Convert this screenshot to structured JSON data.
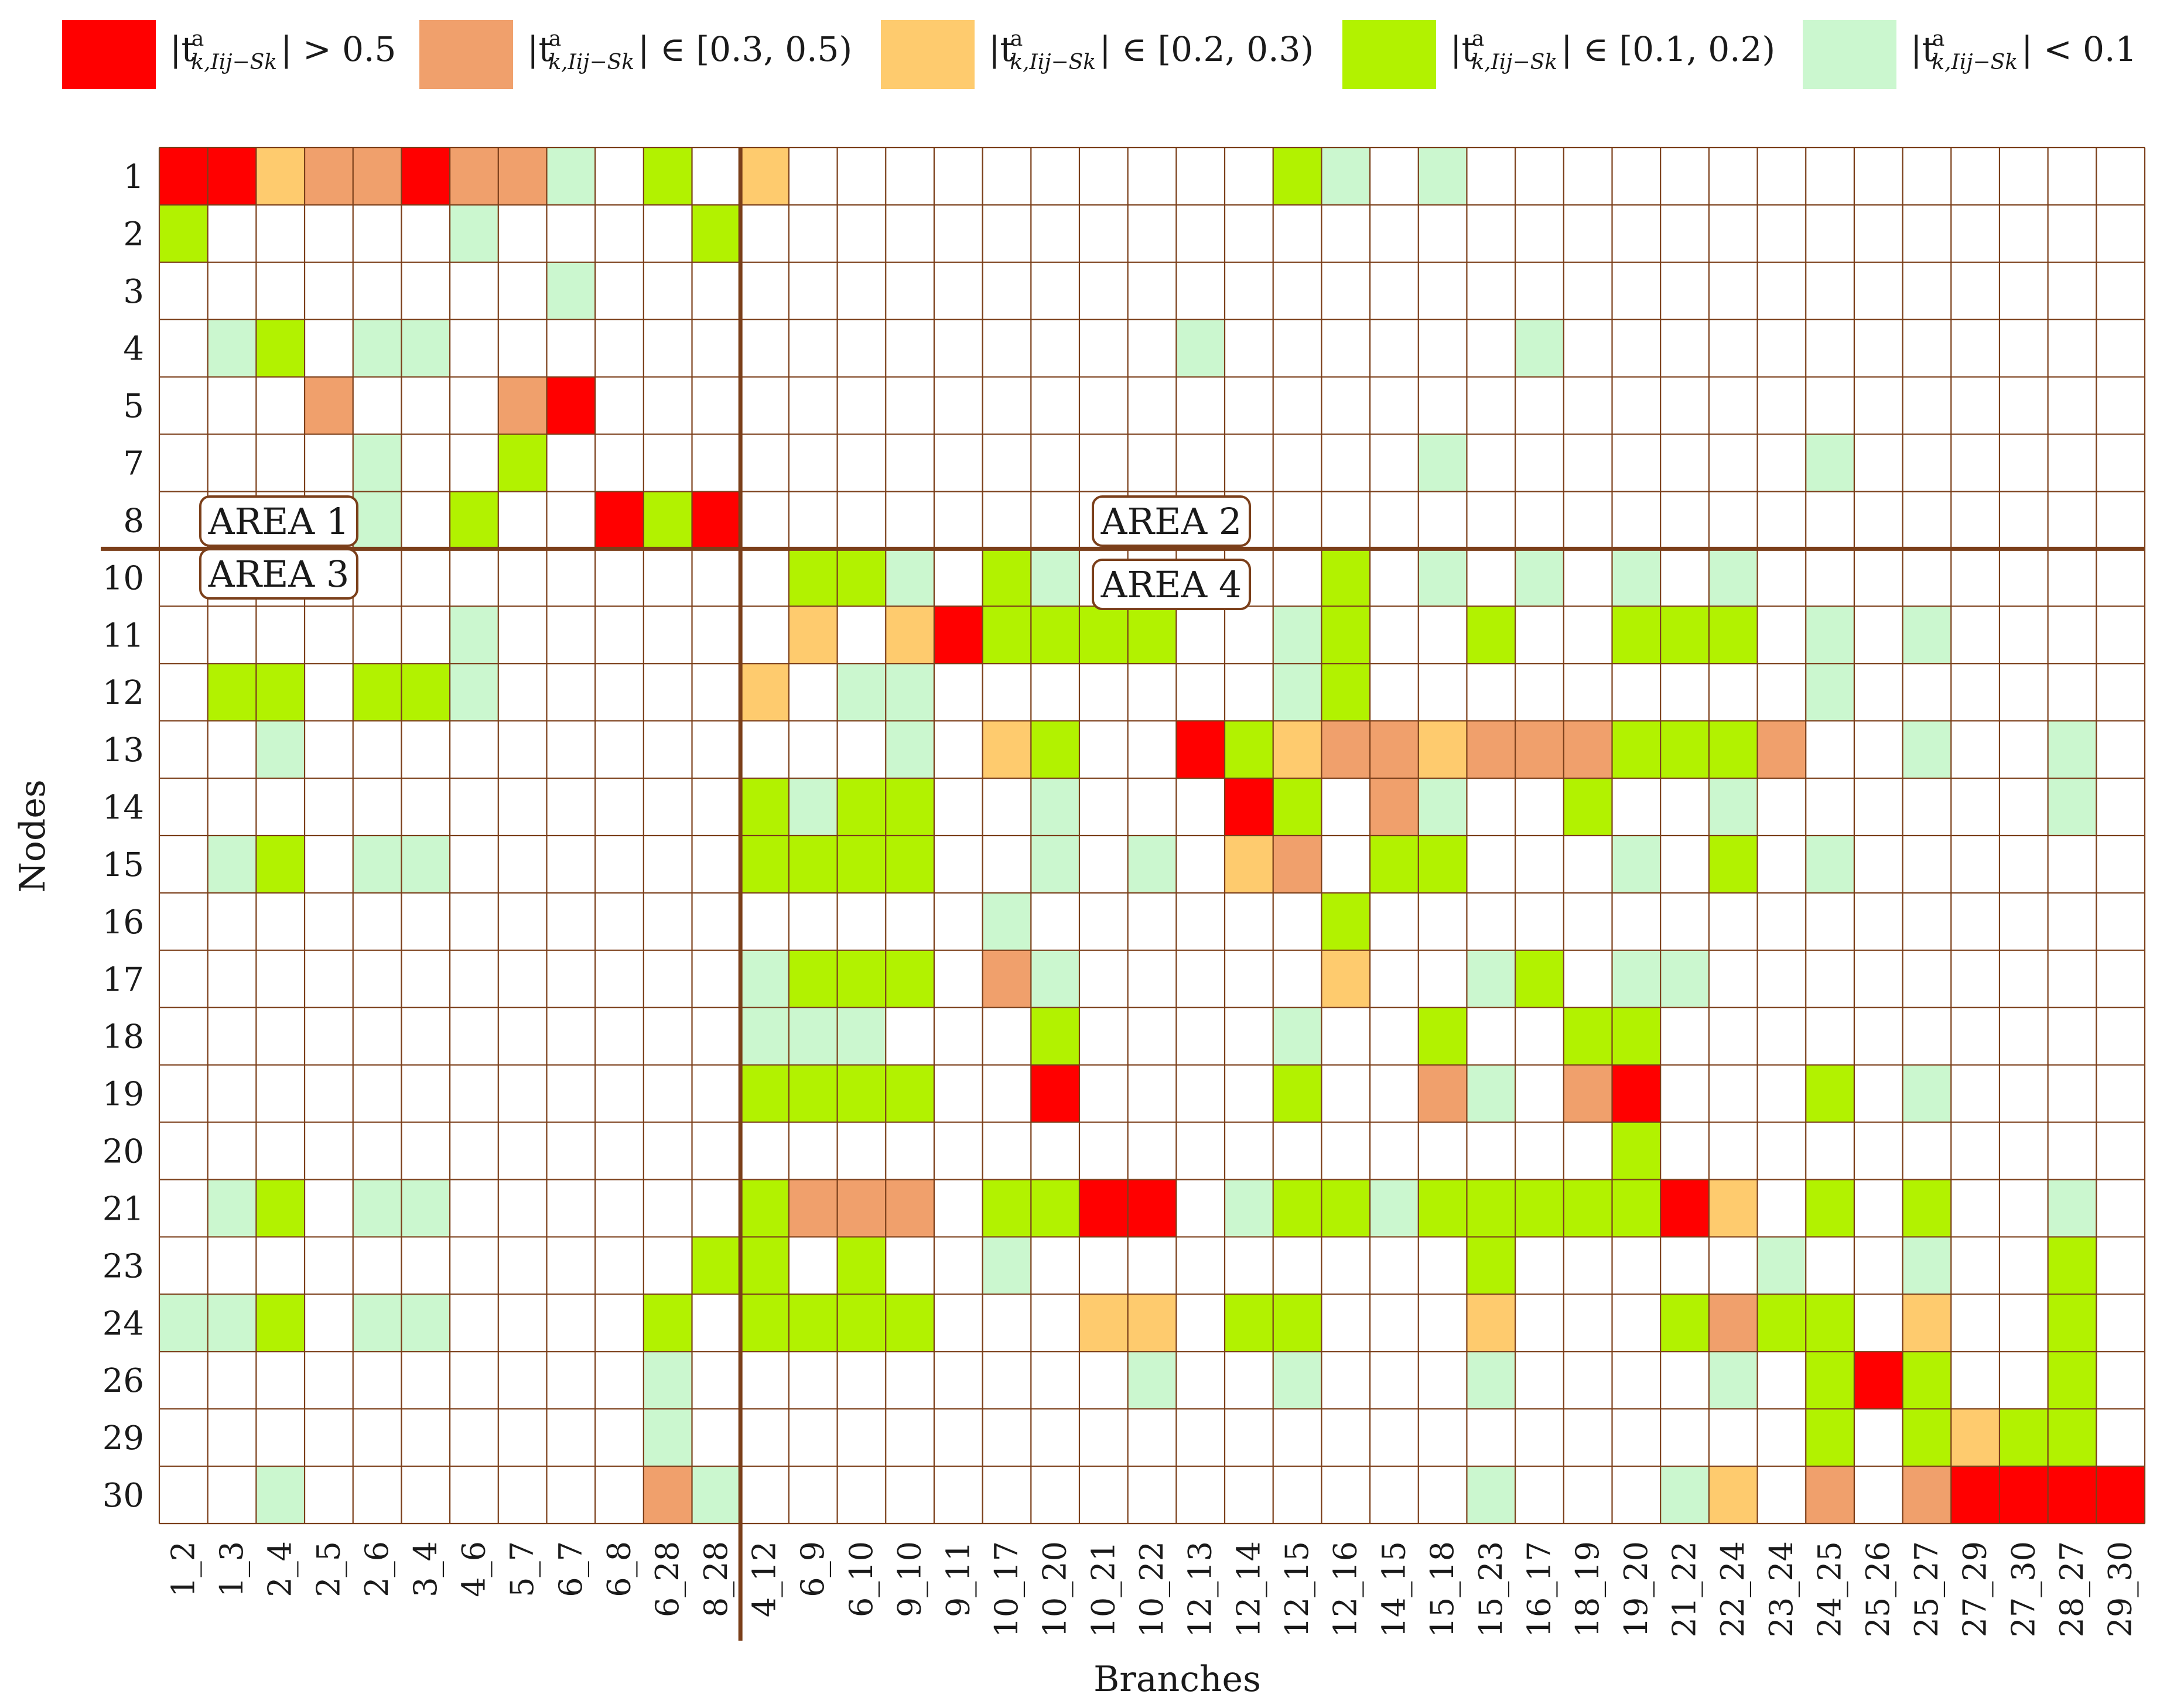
{
  "legend": [
    {
      "level": 4,
      "color": "#ff0000",
      "prefix": "|t",
      "sup": "a",
      "sub": "k,Iij−Sk",
      "suffix": "| > 0.5"
    },
    {
      "level": 3,
      "color": "#f0a06c",
      "prefix": "|t",
      "sup": "a",
      "sub": "k,Iij−Sk",
      "suffix": "| ∈ [0.3, 0.5)"
    },
    {
      "level": 2,
      "color": "#fecb6e",
      "prefix": "|t",
      "sup": "a",
      "sub": "k,Iij−Sk",
      "suffix": "| ∈ [0.2, 0.3)"
    },
    {
      "level": 1,
      "color": "#b2f200",
      "prefix": "|t",
      "sup": "a",
      "sub": "k,Iij−Sk",
      "suffix": "| ∈ [0.1, 0.2)"
    },
    {
      "level": 0,
      "color": "#cbf7cf",
      "prefix": "|t",
      "sup": "a",
      "sub": "k,Iij−Sk",
      "suffix": "| < 0.1"
    }
  ],
  "colors": {
    "grid": "#7b3f1a",
    "divider": "#7b3f1a",
    "empty": "#ffffff"
  },
  "area_labels": [
    "AREA 1",
    "AREA 2",
    "AREA 3",
    "AREA 4"
  ],
  "chart_data": {
    "type": "heatmap",
    "xlabel": "Branches",
    "ylabel": "Nodes",
    "rows": [
      "1",
      "2",
      "3",
      "4",
      "5",
      "7",
      "8",
      "10",
      "11",
      "12",
      "13",
      "14",
      "15",
      "16",
      "17",
      "18",
      "19",
      "20",
      "21",
      "23",
      "24",
      "26",
      "29",
      "30"
    ],
    "cols": [
      "1_2",
      "1_3",
      "2_4",
      "2_5",
      "2_6",
      "3_4",
      "4_6",
      "5_7",
      "6_7",
      "6_8",
      "6_28",
      "8_28",
      "4_12",
      "6_9",
      "6_10",
      "9_10",
      "9_11",
      "10_17",
      "10_20",
      "10_21",
      "10_22",
      "12_13",
      "12_14",
      "12_15",
      "12_16",
      "14_15",
      "15_18",
      "15_23",
      "16_17",
      "18_19",
      "19_20",
      "21_22",
      "22_24",
      "23_24",
      "24_25",
      "25_26",
      "25_27",
      "27_29",
      "27_30",
      "28_27",
      "29_30"
    ],
    "level_meaning": {
      "-1": "empty",
      "0": "< 0.1",
      "1": "[0.1, 0.2)",
      "2": "[0.2, 0.3)",
      "3": "[0.3, 0.5)",
      "4": "> 0.5"
    },
    "area_split": {
      "after_row": "8",
      "after_col": "8_28"
    },
    "cells": [
      [
        4,
        4,
        2,
        3,
        3,
        4,
        3,
        3,
        0,
        -1,
        1,
        -1,
        2,
        -1,
        -1,
        -1,
        -1,
        -1,
        -1,
        -1,
        -1,
        -1,
        -1,
        1,
        0,
        -1,
        0,
        -1,
        -1,
        -1,
        -1,
        -1,
        -1,
        -1,
        -1,
        -1,
        -1,
        -1,
        -1,
        -1,
        -1
      ],
      [
        1,
        -1,
        -1,
        -1,
        -1,
        -1,
        0,
        -1,
        -1,
        -1,
        -1,
        1,
        -1,
        -1,
        -1,
        -1,
        -1,
        -1,
        -1,
        -1,
        -1,
        -1,
        -1,
        -1,
        -1,
        -1,
        -1,
        -1,
        -1,
        -1,
        -1,
        -1,
        -1,
        -1,
        -1,
        -1,
        -1,
        -1,
        -1,
        -1,
        -1
      ],
      [
        -1,
        -1,
        -1,
        -1,
        -1,
        -1,
        -1,
        -1,
        0,
        -1,
        -1,
        -1,
        -1,
        -1,
        -1,
        -1,
        -1,
        -1,
        -1,
        -1,
        -1,
        -1,
        -1,
        -1,
        -1,
        -1,
        -1,
        -1,
        -1,
        -1,
        -1,
        -1,
        -1,
        -1,
        -1,
        -1,
        -1,
        -1,
        -1,
        -1,
        -1
      ],
      [
        -1,
        0,
        1,
        -1,
        0,
        0,
        -1,
        -1,
        -1,
        -1,
        -1,
        -1,
        -1,
        -1,
        -1,
        -1,
        -1,
        -1,
        -1,
        -1,
        -1,
        0,
        -1,
        -1,
        -1,
        -1,
        -1,
        -1,
        0,
        -1,
        -1,
        -1,
        -1,
        -1,
        -1,
        -1,
        -1,
        -1,
        -1,
        -1,
        -1
      ],
      [
        -1,
        -1,
        -1,
        3,
        -1,
        -1,
        -1,
        3,
        4,
        -1,
        -1,
        -1,
        -1,
        -1,
        -1,
        -1,
        -1,
        -1,
        -1,
        -1,
        -1,
        -1,
        -1,
        -1,
        -1,
        -1,
        -1,
        -1,
        -1,
        -1,
        -1,
        -1,
        -1,
        -1,
        -1,
        -1,
        -1,
        -1,
        -1,
        -1,
        -1
      ],
      [
        -1,
        -1,
        -1,
        -1,
        0,
        -1,
        -1,
        1,
        -1,
        -1,
        -1,
        -1,
        -1,
        -1,
        -1,
        -1,
        -1,
        -1,
        -1,
        -1,
        -1,
        -1,
        -1,
        -1,
        -1,
        -1,
        0,
        -1,
        -1,
        -1,
        -1,
        -1,
        -1,
        -1,
        0,
        -1,
        -1,
        -1,
        -1,
        -1,
        -1
      ],
      [
        -1,
        -1,
        -1,
        -1,
        0,
        -1,
        1,
        -1,
        -1,
        4,
        1,
        4,
        -1,
        -1,
        -1,
        -1,
        -1,
        -1,
        -1,
        -1,
        -1,
        -1,
        -1,
        -1,
        -1,
        -1,
        -1,
        -1,
        -1,
        -1,
        -1,
        -1,
        -1,
        -1,
        -1,
        -1,
        -1,
        -1,
        -1,
        -1,
        -1
      ],
      [
        -1,
        -1,
        -1,
        -1,
        -1,
        -1,
        -1,
        -1,
        -1,
        -1,
        -1,
        -1,
        -1,
        1,
        1,
        0,
        -1,
        1,
        0,
        -1,
        -1,
        -1,
        -1,
        -1,
        1,
        -1,
        0,
        -1,
        0,
        -1,
        0,
        -1,
        0,
        -1,
        -1,
        -1,
        -1,
        -1,
        -1,
        -1,
        -1
      ],
      [
        -1,
        -1,
        -1,
        -1,
        -1,
        -1,
        0,
        -1,
        -1,
        -1,
        -1,
        -1,
        -1,
        2,
        -1,
        2,
        4,
        1,
        1,
        1,
        1,
        -1,
        -1,
        0,
        1,
        -1,
        -1,
        1,
        -1,
        -1,
        1,
        1,
        1,
        -1,
        0,
        -1,
        0,
        -1,
        -1,
        -1,
        -1
      ],
      [
        -1,
        1,
        1,
        -1,
        1,
        1,
        0,
        -1,
        -1,
        -1,
        -1,
        -1,
        2,
        -1,
        0,
        0,
        -1,
        -1,
        -1,
        -1,
        -1,
        -1,
        -1,
        0,
        1,
        -1,
        -1,
        -1,
        -1,
        -1,
        -1,
        -1,
        -1,
        -1,
        0,
        -1,
        -1,
        -1,
        -1,
        -1,
        -1
      ],
      [
        -1,
        -1,
        0,
        -1,
        -1,
        -1,
        -1,
        -1,
        -1,
        -1,
        -1,
        -1,
        -1,
        -1,
        -1,
        0,
        -1,
        2,
        1,
        -1,
        -1,
        4,
        1,
        2,
        3,
        3,
        2,
        3,
        3,
        3,
        1,
        1,
        1,
        3,
        -1,
        -1,
        0,
        -1,
        -1,
        0,
        -1
      ],
      [
        -1,
        -1,
        -1,
        -1,
        -1,
        -1,
        -1,
        -1,
        -1,
        -1,
        -1,
        -1,
        1,
        0,
        1,
        1,
        -1,
        -1,
        0,
        -1,
        -1,
        -1,
        4,
        1,
        -1,
        3,
        0,
        -1,
        -1,
        1,
        -1,
        -1,
        0,
        -1,
        -1,
        -1,
        -1,
        -1,
        -1,
        0,
        -1
      ],
      [
        -1,
        0,
        1,
        -1,
        0,
        0,
        -1,
        -1,
        -1,
        -1,
        -1,
        -1,
        1,
        1,
        1,
        1,
        -1,
        -1,
        0,
        -1,
        0,
        -1,
        2,
        3,
        -1,
        1,
        1,
        -1,
        -1,
        -1,
        0,
        -1,
        1,
        -1,
        0,
        -1,
        -1,
        -1,
        -1,
        -1,
        -1
      ],
      [
        -1,
        -1,
        -1,
        -1,
        -1,
        -1,
        -1,
        -1,
        -1,
        -1,
        -1,
        -1,
        -1,
        -1,
        -1,
        -1,
        -1,
        0,
        -1,
        -1,
        -1,
        -1,
        -1,
        -1,
        1,
        -1,
        -1,
        -1,
        -1,
        -1,
        -1,
        -1,
        -1,
        -1,
        -1,
        -1,
        -1,
        -1,
        -1,
        -1,
        -1
      ],
      [
        -1,
        -1,
        -1,
        -1,
        -1,
        -1,
        -1,
        -1,
        -1,
        -1,
        -1,
        -1,
        0,
        1,
        1,
        1,
        -1,
        3,
        0,
        -1,
        -1,
        -1,
        -1,
        -1,
        2,
        -1,
        -1,
        0,
        1,
        -1,
        0,
        0,
        -1,
        -1,
        -1,
        -1,
        -1,
        -1,
        -1,
        -1,
        -1
      ],
      [
        -1,
        -1,
        -1,
        -1,
        -1,
        -1,
        -1,
        -1,
        -1,
        -1,
        -1,
        -1,
        0,
        0,
        0,
        -1,
        -1,
        -1,
        1,
        -1,
        -1,
        -1,
        -1,
        0,
        -1,
        -1,
        1,
        -1,
        -1,
        1,
        1,
        -1,
        -1,
        -1,
        -1,
        -1,
        -1,
        -1,
        -1,
        -1,
        -1
      ],
      [
        -1,
        -1,
        -1,
        -1,
        -1,
        -1,
        -1,
        -1,
        -1,
        -1,
        -1,
        -1,
        1,
        1,
        1,
        1,
        -1,
        -1,
        4,
        -1,
        -1,
        -1,
        -1,
        1,
        -1,
        -1,
        3,
        0,
        -1,
        3,
        4,
        -1,
        -1,
        -1,
        1,
        -1,
        0,
        -1,
        -1,
        -1,
        -1
      ],
      [
        -1,
        -1,
        -1,
        -1,
        -1,
        -1,
        -1,
        -1,
        -1,
        -1,
        -1,
        -1,
        -1,
        -1,
        -1,
        -1,
        -1,
        -1,
        -1,
        -1,
        -1,
        -1,
        -1,
        -1,
        -1,
        -1,
        -1,
        -1,
        -1,
        -1,
        1,
        -1,
        -1,
        -1,
        -1,
        -1,
        -1,
        -1,
        -1,
        -1,
        -1
      ],
      [
        -1,
        0,
        1,
        -1,
        0,
        0,
        -1,
        -1,
        -1,
        -1,
        -1,
        -1,
        1,
        3,
        3,
        3,
        -1,
        1,
        1,
        4,
        4,
        -1,
        0,
        1,
        1,
        0,
        1,
        1,
        1,
        1,
        1,
        4,
        2,
        -1,
        1,
        -1,
        1,
        -1,
        -1,
        0,
        -1
      ],
      [
        -1,
        -1,
        -1,
        -1,
        -1,
        -1,
        -1,
        -1,
        -1,
        -1,
        -1,
        1,
        1,
        -1,
        1,
        -1,
        -1,
        0,
        -1,
        -1,
        -1,
        -1,
        -1,
        -1,
        -1,
        -1,
        -1,
        1,
        -1,
        -1,
        -1,
        -1,
        -1,
        0,
        -1,
        -1,
        0,
        -1,
        -1,
        1,
        -1
      ],
      [
        0,
        0,
        1,
        -1,
        0,
        0,
        -1,
        -1,
        -1,
        -1,
        1,
        -1,
        1,
        1,
        1,
        1,
        -1,
        -1,
        -1,
        2,
        2,
        -1,
        1,
        1,
        -1,
        -1,
        -1,
        2,
        -1,
        -1,
        -1,
        1,
        3,
        1,
        1,
        -1,
        2,
        -1,
        -1,
        1,
        -1
      ],
      [
        -1,
        -1,
        -1,
        -1,
        -1,
        -1,
        -1,
        -1,
        -1,
        -1,
        0,
        -1,
        -1,
        -1,
        -1,
        -1,
        -1,
        -1,
        -1,
        -1,
        0,
        -1,
        -1,
        0,
        -1,
        -1,
        -1,
        0,
        -1,
        -1,
        -1,
        -1,
        0,
        -1,
        1,
        4,
        1,
        -1,
        -1,
        1,
        -1
      ],
      [
        -1,
        -1,
        -1,
        -1,
        -1,
        -1,
        -1,
        -1,
        -1,
        -1,
        0,
        -1,
        -1,
        -1,
        -1,
        -1,
        -1,
        -1,
        -1,
        -1,
        -1,
        -1,
        -1,
        -1,
        -1,
        -1,
        -1,
        -1,
        -1,
        -1,
        -1,
        -1,
        -1,
        -1,
        1,
        -1,
        1,
        2,
        1,
        1,
        -1
      ],
      [
        -1,
        -1,
        0,
        -1,
        -1,
        -1,
        -1,
        -1,
        -1,
        -1,
        3,
        0,
        -1,
        -1,
        -1,
        -1,
        -1,
        -1,
        -1,
        -1,
        -1,
        -1,
        -1,
        -1,
        -1,
        -1,
        -1,
        0,
        -1,
        -1,
        -1,
        0,
        2,
        -1,
        3,
        -1,
        3,
        4,
        4,
        4,
        4
      ]
    ]
  }
}
